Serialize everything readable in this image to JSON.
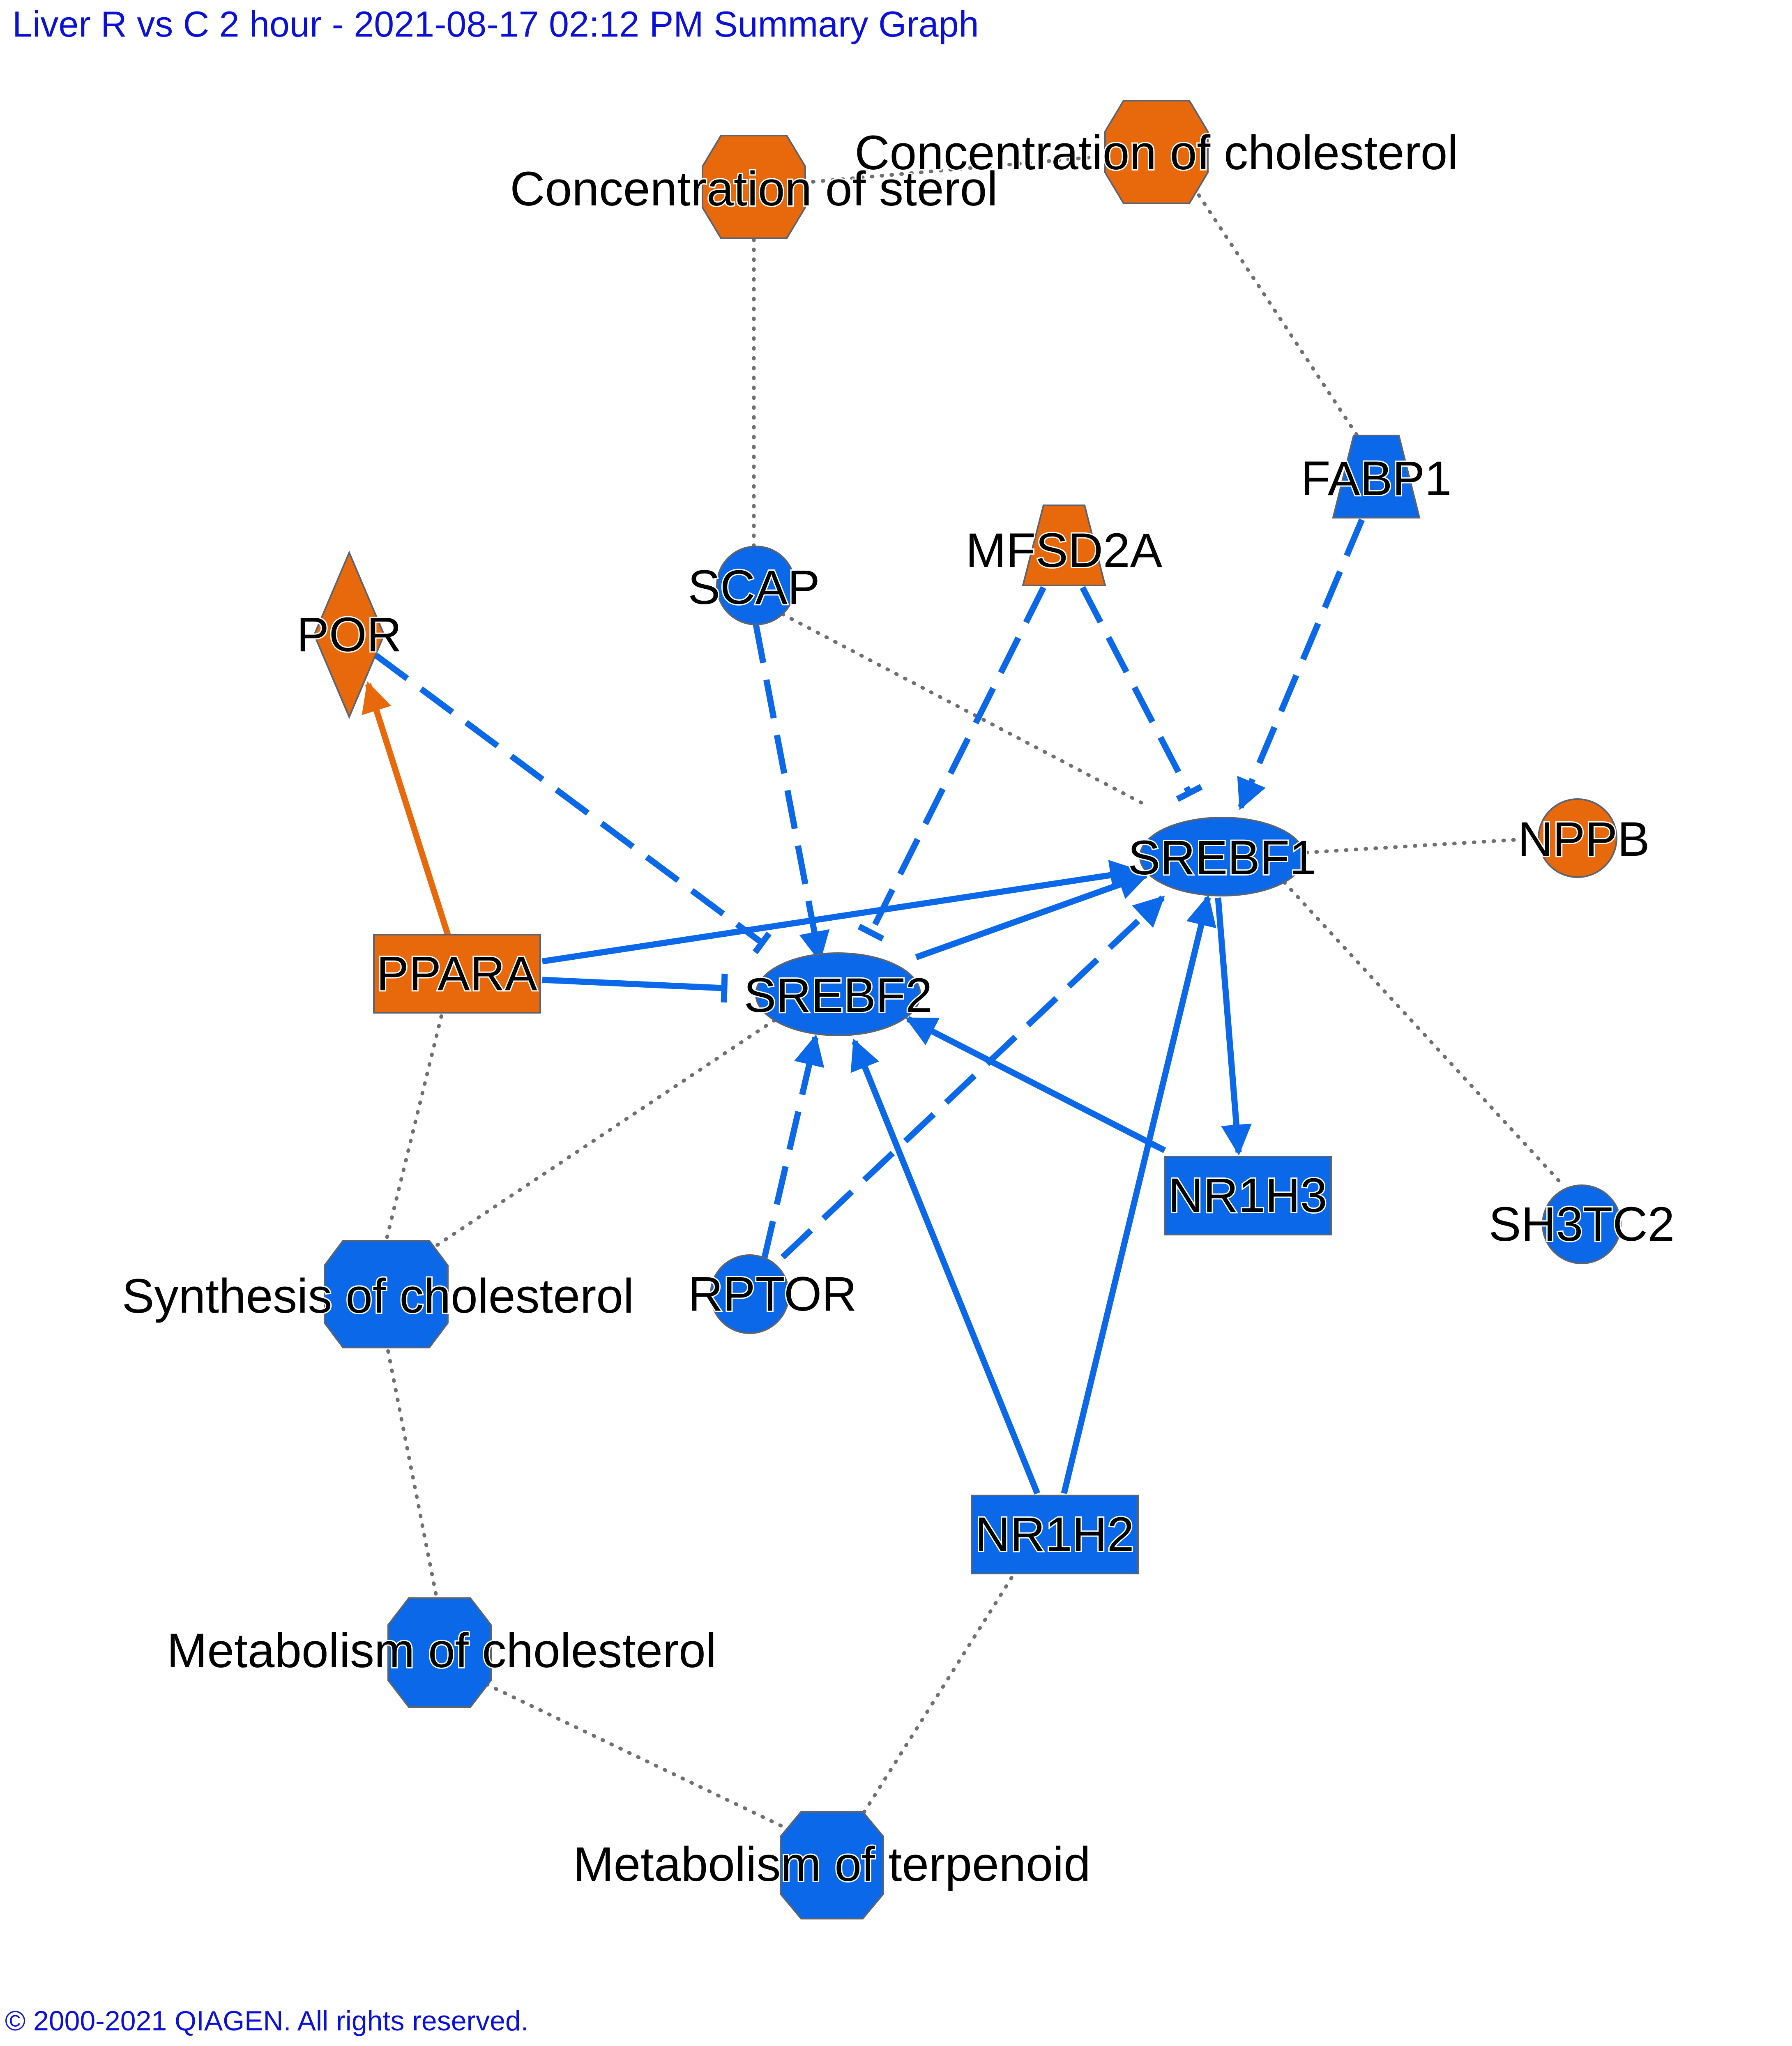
{
  "header": {
    "title": "Liver R vs C 2 hour - 2021-08-17 02:12 PM Summary Graph"
  },
  "footer": {
    "copyright": "© 2000-2021 QIAGEN. All rights reserved."
  },
  "colors": {
    "up": "#e8690b",
    "down": "#0b68e8",
    "border": "#5b6470",
    "dotted": "#707070",
    "text_link": "#0a10d8"
  },
  "nodes": {
    "conc_sterol": {
      "label": "Concentration of sterol",
      "shape": "octagon",
      "state": "up"
    },
    "conc_chol": {
      "label": "Concentration of cholesterol",
      "shape": "octagon",
      "state": "up"
    },
    "fabp1": {
      "label": "FABP1",
      "shape": "trapezoid",
      "state": "down"
    },
    "mfsd2a": {
      "label": "MFSD2A",
      "shape": "trapezoid",
      "state": "up"
    },
    "scap": {
      "label": "SCAP",
      "shape": "circle",
      "state": "down"
    },
    "por": {
      "label": "POR",
      "shape": "diamond",
      "state": "up"
    },
    "srebf1": {
      "label": "SREBF1",
      "shape": "ellipse",
      "state": "down"
    },
    "nppb": {
      "label": "NPPB",
      "shape": "circle",
      "state": "up"
    },
    "ppara": {
      "label": "PPARA",
      "shape": "rectangle",
      "state": "up"
    },
    "srebf2": {
      "label": "SREBF2",
      "shape": "ellipse",
      "state": "down"
    },
    "nr1h3": {
      "label": "NR1H3",
      "shape": "rectangle",
      "state": "down"
    },
    "sh3tc2": {
      "label": "SH3TC2",
      "shape": "circle",
      "state": "down"
    },
    "synth_chol": {
      "label": "Synthesis of cholesterol",
      "shape": "octagon",
      "state": "down"
    },
    "rptor": {
      "label": "RPTOR",
      "shape": "circle",
      "state": "down"
    },
    "nr1h2": {
      "label": "NR1H2",
      "shape": "rectangle",
      "state": "down"
    },
    "metab_chol": {
      "label": "Metabolism of cholesterol",
      "shape": "octagon",
      "state": "down"
    },
    "metab_terp": {
      "label": "Metabolism of terpenoid",
      "shape": "octagon",
      "state": "down"
    }
  },
  "edges": [
    {
      "from": "PPARA",
      "to": "POR",
      "type": "activation",
      "style": "solid",
      "color": "up"
    },
    {
      "from": "POR",
      "to": "SREBF2",
      "type": "inhibition",
      "style": "dashed",
      "color": "down"
    },
    {
      "from": "SCAP",
      "to": "SREBF2",
      "type": "activation",
      "style": "dashed",
      "color": "down"
    },
    {
      "from": "MFSD2A",
      "to": "SREBF2",
      "type": "inhibition",
      "style": "dashed",
      "color": "down"
    },
    {
      "from": "MFSD2A",
      "to": "SREBF1",
      "type": "inhibition",
      "style": "dashed",
      "color": "down"
    },
    {
      "from": "FABP1",
      "to": "SREBF1",
      "type": "activation",
      "style": "dashed",
      "color": "down"
    },
    {
      "from": "PPARA",
      "to": "SREBF1",
      "type": "activation",
      "style": "solid",
      "color": "down"
    },
    {
      "from": "PPARA",
      "to": "SREBF2",
      "type": "inhibition",
      "style": "solid",
      "color": "down"
    },
    {
      "from": "SREBF2",
      "to": "SREBF1",
      "type": "activation",
      "style": "solid",
      "color": "down"
    },
    {
      "from": "NR1H3",
      "to": "SREBF2",
      "type": "activation",
      "style": "solid",
      "color": "down"
    },
    {
      "from": "RPTOR",
      "to": "SREBF2",
      "type": "activation",
      "style": "dashed",
      "color": "down"
    },
    {
      "from": "RPTOR",
      "to": "SREBF1",
      "type": "activation",
      "style": "dashed",
      "color": "down"
    },
    {
      "from": "NR1H2",
      "to": "SREBF2",
      "type": "activation",
      "style": "solid",
      "color": "down"
    },
    {
      "from": "NR1H2",
      "to": "SREBF1",
      "type": "activation",
      "style": "solid",
      "color": "down"
    },
    {
      "from": "SREBF1",
      "to": "NR1H3",
      "type": "activation",
      "style": "solid",
      "color": "down"
    },
    {
      "from": "Concentration of sterol",
      "to": "Concentration of cholesterol",
      "type": "association",
      "style": "dotted"
    },
    {
      "from": "Concentration of sterol",
      "to": "SCAP",
      "type": "association",
      "style": "dotted"
    },
    {
      "from": "Concentration of cholesterol",
      "to": "FABP1",
      "type": "association",
      "style": "dotted"
    },
    {
      "from": "SCAP",
      "to": "SREBF1",
      "type": "association",
      "style": "dotted"
    },
    {
      "from": "SREBF1",
      "to": "NPPB",
      "type": "association",
      "style": "dotted"
    },
    {
      "from": "SREBF1",
      "to": "SH3TC2",
      "type": "association",
      "style": "dotted"
    },
    {
      "from": "SREBF2",
      "to": "Synthesis of cholesterol",
      "type": "association",
      "style": "dotted"
    },
    {
      "from": "PPARA",
      "to": "Synthesis of cholesterol",
      "type": "association",
      "style": "dotted"
    },
    {
      "from": "Synthesis of cholesterol",
      "to": "Metabolism of cholesterol",
      "type": "association",
      "style": "dotted"
    },
    {
      "from": "Metabolism of cholesterol",
      "to": "Metabolism of terpenoid",
      "type": "association",
      "style": "dotted"
    },
    {
      "from": "NR1H2",
      "to": "Metabolism of terpenoid",
      "type": "association",
      "style": "dotted"
    }
  ]
}
